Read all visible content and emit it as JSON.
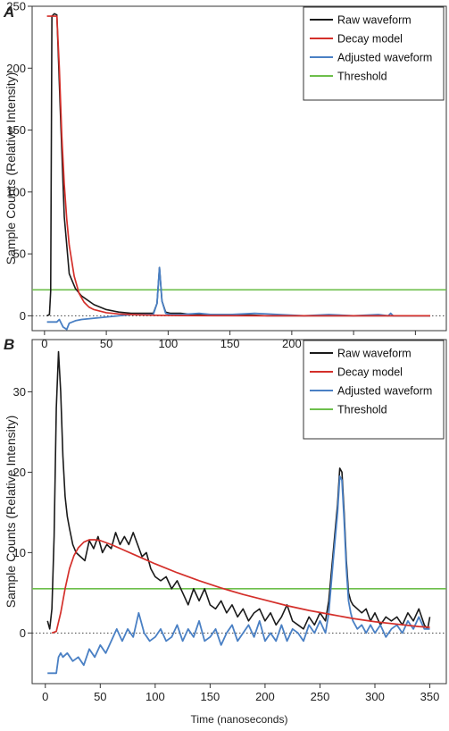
{
  "chart_data": [
    {
      "type": "line",
      "panel": "A",
      "title": "",
      "xlabel": "",
      "ylabel": "Sample Counts (Relative Intensity)",
      "xlim": [
        -10,
        325
      ],
      "ylim": [
        -12,
        250
      ],
      "x_ticks": [
        0,
        50,
        100,
        150,
        200,
        250,
        300
      ],
      "y_ticks": [
        0,
        50,
        100,
        150,
        200,
        250
      ],
      "grid": false,
      "legend": {
        "position": "top-right",
        "entries": [
          "Raw waveform",
          "Decay model",
          "Adjusted waveform",
          "Threshold"
        ]
      },
      "zero_line": {
        "y": 0,
        "style": "dotted"
      },
      "colors": {
        "Raw waveform": "#1a1a1a",
        "Decay model": "#d42f2a",
        "Adjusted waveform": "#4a80c4",
        "Threshold": "#6dbf4b"
      },
      "series": [
        {
          "name": "Raw waveform",
          "x": [
            2,
            4,
            5,
            6,
            8,
            10,
            13,
            16,
            20,
            25,
            30,
            40,
            50,
            60,
            70,
            80,
            88,
            91,
            93,
            95,
            98,
            102,
            110,
            120,
            140,
            160,
            180,
            200,
            220,
            240,
            260,
            280,
            300,
            312
          ],
          "y": [
            0,
            1,
            20,
            242,
            244,
            243,
            160,
            80,
            34,
            22,
            16,
            9,
            5,
            3,
            2,
            2,
            2,
            10,
            39,
            12,
            3,
            2,
            2,
            1,
            1,
            1,
            0,
            0,
            0,
            0,
            0,
            0,
            0,
            0
          ]
        },
        {
          "name": "Decay model",
          "x": [
            2,
            5,
            6,
            8,
            10,
            12,
            14,
            16,
            18,
            20,
            24,
            28,
            32,
            36,
            40,
            50,
            60,
            75,
            90,
            110,
            140,
            180,
            230,
            280,
            312
          ],
          "y": [
            242,
            242,
            242,
            242,
            242,
            200,
            145,
            106,
            78,
            57,
            32,
            18,
            11,
            7,
            5,
            2.5,
            1.5,
            0.8,
            0.4,
            0.2,
            0.1,
            0,
            0,
            0,
            0
          ],
          "style": "solid"
        },
        {
          "name": "Adjusted waveform",
          "x": [
            2,
            10,
            12,
            15,
            18,
            20,
            25,
            30,
            40,
            50,
            60,
            70,
            80,
            88,
            91,
            93,
            95,
            98,
            102,
            110,
            125,
            135,
            150,
            170,
            190,
            210,
            230,
            250,
            270,
            278,
            280,
            282,
            290,
            312
          ],
          "y": [
            -5,
            -5,
            -3,
            -9,
            -11,
            -6,
            -4,
            -3,
            -2,
            -1,
            0,
            1,
            1,
            1,
            10,
            39,
            12,
            2,
            1,
            1,
            2,
            1,
            1,
            2,
            1,
            0,
            1,
            0,
            1,
            0,
            2,
            0,
            0,
            0
          ]
        },
        {
          "name": "Threshold",
          "x": [
            -10,
            325
          ],
          "y": [
            21,
            21
          ]
        }
      ]
    },
    {
      "type": "line",
      "panel": "B",
      "title": "",
      "xlabel": "Time (nanoseconds)",
      "ylabel": "Sample Counts (Relative Intensity)",
      "xlim": [
        -12,
        365
      ],
      "ylim": [
        -6.3,
        36.5
      ],
      "x_ticks": [
        0,
        50,
        100,
        150,
        200,
        250,
        300,
        350
      ],
      "y_ticks": [
        0,
        10,
        20,
        30
      ],
      "grid": false,
      "legend": {
        "position": "top-right",
        "entries": [
          "Raw waveform",
          "Decay model",
          "Adjusted waveform",
          "Threshold"
        ]
      },
      "zero_line": {
        "y": 0,
        "style": "dotted"
      },
      "colors": {
        "Raw waveform": "#1a1a1a",
        "Decay model": "#d42f2a",
        "Adjusted waveform": "#4a80c4",
        "Threshold": "#6dbf4b"
      },
      "series": [
        {
          "name": "Raw waveform",
          "x": [
            2,
            4,
            6,
            8,
            10,
            12,
            14,
            16,
            18,
            20,
            22,
            25,
            28,
            32,
            36,
            40,
            44,
            48,
            52,
            56,
            60,
            64,
            68,
            72,
            76,
            80,
            84,
            88,
            92,
            96,
            100,
            105,
            110,
            115,
            120,
            125,
            130,
            135,
            140,
            145,
            150,
            155,
            160,
            165,
            170,
            175,
            180,
            185,
            190,
            195,
            200,
            205,
            210,
            215,
            220,
            225,
            230,
            235,
            240,
            245,
            250,
            255,
            258,
            262,
            266,
            268,
            270,
            272,
            274,
            276,
            278,
            280,
            284,
            288,
            292,
            296,
            300,
            305,
            310,
            315,
            320,
            325,
            330,
            335,
            340,
            345,
            348,
            350
          ],
          "y": [
            1.5,
            0.5,
            3,
            12,
            28,
            35,
            30,
            22,
            17,
            14.5,
            13,
            11,
            10,
            9.5,
            9,
            11.5,
            10.5,
            12,
            10,
            11,
            10.5,
            12.5,
            11,
            12,
            11,
            12.5,
            11,
            9.5,
            10,
            8,
            7,
            6.5,
            7,
            5.5,
            6.5,
            5,
            3.5,
            5.5,
            4,
            5.5,
            3.5,
            3,
            4,
            2.5,
            3.5,
            2,
            3,
            1.5,
            2.5,
            3,
            1.5,
            2.5,
            1,
            2,
            3.5,
            1.5,
            1,
            0.5,
            2,
            1,
            2.5,
            1.5,
            4,
            10,
            16,
            20.5,
            20,
            15,
            9,
            5,
            4,
            3.5,
            3,
            2.5,
            3,
            1.5,
            2.5,
            1,
            2,
            1.5,
            2,
            1,
            2.5,
            1.5,
            3,
            1,
            0.5,
            2
          ]
        },
        {
          "name": "Decay model",
          "x": [
            6,
            10,
            14,
            18,
            22,
            26,
            30,
            35,
            40,
            45,
            50,
            60,
            70,
            80,
            90,
            100,
            120,
            140,
            160,
            180,
            200,
            220,
            240,
            260,
            280,
            300,
            320,
            340,
            350
          ],
          "y": [
            0,
            0.2,
            2.5,
            5.5,
            8,
            9.6,
            10.6,
            11.3,
            11.6,
            11.6,
            11.5,
            11,
            10.4,
            9.8,
            9.2,
            8.6,
            7.5,
            6.5,
            5.6,
            4.8,
            4.1,
            3.4,
            2.8,
            2.3,
            1.8,
            1.4,
            1.1,
            0.8,
            0.7
          ],
          "style": "solid"
        },
        {
          "name": "Adjusted waveform",
          "x": [
            2,
            10,
            12,
            14,
            16,
            20,
            25,
            30,
            35,
            40,
            45,
            50,
            55,
            60,
            65,
            70,
            75,
            80,
            85,
            90,
            95,
            100,
            105,
            110,
            115,
            120,
            125,
            130,
            135,
            140,
            145,
            150,
            155,
            160,
            165,
            170,
            175,
            180,
            185,
            190,
            195,
            200,
            205,
            210,
            215,
            220,
            225,
            230,
            235,
            240,
            245,
            250,
            255,
            258,
            262,
            266,
            268,
            270,
            272,
            274,
            276,
            278,
            280,
            284,
            288,
            292,
            296,
            300,
            305,
            310,
            315,
            320,
            325,
            330,
            335,
            340,
            345,
            350
          ],
          "y": [
            -5,
            -5,
            -3,
            -2.5,
            -3,
            -2.5,
            -3.5,
            -3,
            -4,
            -2,
            -3,
            -1.5,
            -2.5,
            -1,
            0.5,
            -1,
            0.5,
            -0.5,
            2.5,
            0,
            -1,
            -0.5,
            0.5,
            -1,
            -0.5,
            1,
            -1,
            0.5,
            -0.5,
            1.5,
            -1,
            -0.5,
            0.5,
            -1.5,
            0,
            1,
            -1,
            0,
            1,
            -0.5,
            1.5,
            -1,
            0,
            -1,
            1,
            -1,
            0.5,
            0,
            -1,
            1,
            0,
            1.5,
            0,
            2.5,
            9,
            15,
            19.5,
            19,
            14,
            8,
            4,
            2.5,
            1.5,
            0.5,
            1,
            0,
            1,
            0,
            1,
            -0.5,
            0.5,
            1,
            0,
            1.5,
            0.5,
            2,
            0.5,
            0.5
          ]
        },
        {
          "name": "Threshold",
          "x": [
            -12,
            365
          ],
          "y": [
            5.5,
            5.5
          ]
        }
      ]
    }
  ]
}
